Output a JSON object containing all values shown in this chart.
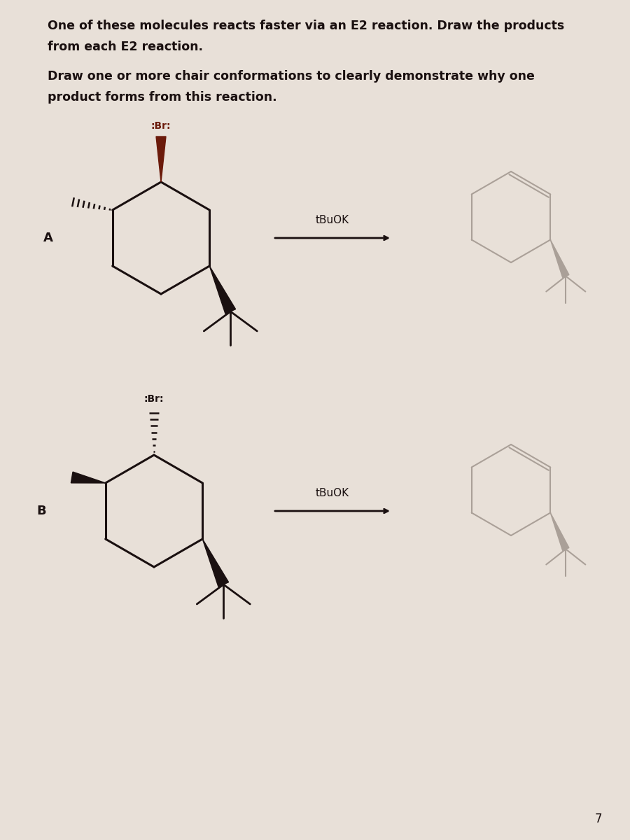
{
  "title_line1": "One of these molecules reacts faster via an E2 reaction. Draw the products",
  "title_line2": "from each E2 reaction.",
  "subtitle_line1": "Draw one or more chair conformations to clearly demonstrate why one",
  "subtitle_line2": "product forms from this reaction.",
  "label_A": "A",
  "label_B": "B",
  "reagent": "tBuOK",
  "bg_color": "#e8e0d8",
  "text_color": "#1a1010",
  "br_color": "#6b1a0a",
  "bond_color": "#1a1010",
  "prod_color": "#aaa098",
  "page_number": "7",
  "title_fontsize": 12.5,
  "subtitle_fontsize": 12.5,
  "label_fontsize": 13
}
